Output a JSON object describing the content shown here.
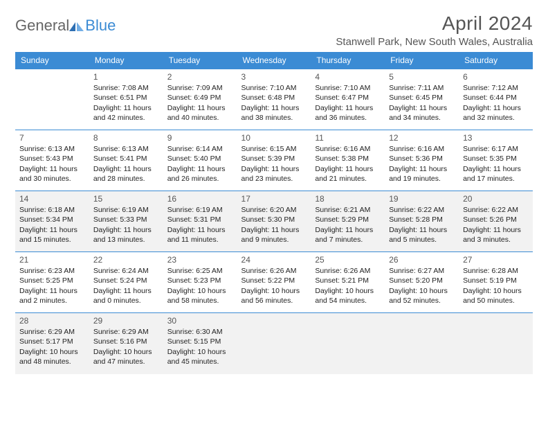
{
  "logo": {
    "general": "General",
    "blue": "Blue"
  },
  "title": {
    "month": "April 2024",
    "location": "Stanwell Park, New South Wales, Australia"
  },
  "weekdays": [
    "Sunday",
    "Monday",
    "Tuesday",
    "Wednesday",
    "Thursday",
    "Friday",
    "Saturday"
  ],
  "colors": {
    "header_bg": "#3b8bd4",
    "header_text": "#ffffff",
    "row_border": "#3b8bd4",
    "shaded_bg": "#f2f2f2",
    "body_text": "#222222",
    "title_text": "#555555"
  },
  "weeks": [
    [
      {
        "day": ""
      },
      {
        "day": "1",
        "sunrise": "Sunrise: 7:08 AM",
        "sunset": "Sunset: 6:51 PM",
        "daylight1": "Daylight: 11 hours",
        "daylight2": "and 42 minutes."
      },
      {
        "day": "2",
        "sunrise": "Sunrise: 7:09 AM",
        "sunset": "Sunset: 6:49 PM",
        "daylight1": "Daylight: 11 hours",
        "daylight2": "and 40 minutes."
      },
      {
        "day": "3",
        "sunrise": "Sunrise: 7:10 AM",
        "sunset": "Sunset: 6:48 PM",
        "daylight1": "Daylight: 11 hours",
        "daylight2": "and 38 minutes."
      },
      {
        "day": "4",
        "sunrise": "Sunrise: 7:10 AM",
        "sunset": "Sunset: 6:47 PM",
        "daylight1": "Daylight: 11 hours",
        "daylight2": "and 36 minutes."
      },
      {
        "day": "5",
        "sunrise": "Sunrise: 7:11 AM",
        "sunset": "Sunset: 6:45 PM",
        "daylight1": "Daylight: 11 hours",
        "daylight2": "and 34 minutes."
      },
      {
        "day": "6",
        "sunrise": "Sunrise: 7:12 AM",
        "sunset": "Sunset: 6:44 PM",
        "daylight1": "Daylight: 11 hours",
        "daylight2": "and 32 minutes."
      }
    ],
    [
      {
        "day": "7",
        "sunrise": "Sunrise: 6:13 AM",
        "sunset": "Sunset: 5:43 PM",
        "daylight1": "Daylight: 11 hours",
        "daylight2": "and 30 minutes."
      },
      {
        "day": "8",
        "sunrise": "Sunrise: 6:13 AM",
        "sunset": "Sunset: 5:41 PM",
        "daylight1": "Daylight: 11 hours",
        "daylight2": "and 28 minutes."
      },
      {
        "day": "9",
        "sunrise": "Sunrise: 6:14 AM",
        "sunset": "Sunset: 5:40 PM",
        "daylight1": "Daylight: 11 hours",
        "daylight2": "and 26 minutes."
      },
      {
        "day": "10",
        "sunrise": "Sunrise: 6:15 AM",
        "sunset": "Sunset: 5:39 PM",
        "daylight1": "Daylight: 11 hours",
        "daylight2": "and 23 minutes."
      },
      {
        "day": "11",
        "sunrise": "Sunrise: 6:16 AM",
        "sunset": "Sunset: 5:38 PM",
        "daylight1": "Daylight: 11 hours",
        "daylight2": "and 21 minutes."
      },
      {
        "day": "12",
        "sunrise": "Sunrise: 6:16 AM",
        "sunset": "Sunset: 5:36 PM",
        "daylight1": "Daylight: 11 hours",
        "daylight2": "and 19 minutes."
      },
      {
        "day": "13",
        "sunrise": "Sunrise: 6:17 AM",
        "sunset": "Sunset: 5:35 PM",
        "daylight1": "Daylight: 11 hours",
        "daylight2": "and 17 minutes."
      }
    ],
    [
      {
        "day": "14",
        "sunrise": "Sunrise: 6:18 AM",
        "sunset": "Sunset: 5:34 PM",
        "daylight1": "Daylight: 11 hours",
        "daylight2": "and 15 minutes."
      },
      {
        "day": "15",
        "sunrise": "Sunrise: 6:19 AM",
        "sunset": "Sunset: 5:33 PM",
        "daylight1": "Daylight: 11 hours",
        "daylight2": "and 13 minutes."
      },
      {
        "day": "16",
        "sunrise": "Sunrise: 6:19 AM",
        "sunset": "Sunset: 5:31 PM",
        "daylight1": "Daylight: 11 hours",
        "daylight2": "and 11 minutes."
      },
      {
        "day": "17",
        "sunrise": "Sunrise: 6:20 AM",
        "sunset": "Sunset: 5:30 PM",
        "daylight1": "Daylight: 11 hours",
        "daylight2": "and 9 minutes."
      },
      {
        "day": "18",
        "sunrise": "Sunrise: 6:21 AM",
        "sunset": "Sunset: 5:29 PM",
        "daylight1": "Daylight: 11 hours",
        "daylight2": "and 7 minutes."
      },
      {
        "day": "19",
        "sunrise": "Sunrise: 6:22 AM",
        "sunset": "Sunset: 5:28 PM",
        "daylight1": "Daylight: 11 hours",
        "daylight2": "and 5 minutes."
      },
      {
        "day": "20",
        "sunrise": "Sunrise: 6:22 AM",
        "sunset": "Sunset: 5:26 PM",
        "daylight1": "Daylight: 11 hours",
        "daylight2": "and 3 minutes."
      }
    ],
    [
      {
        "day": "21",
        "sunrise": "Sunrise: 6:23 AM",
        "sunset": "Sunset: 5:25 PM",
        "daylight1": "Daylight: 11 hours",
        "daylight2": "and 2 minutes."
      },
      {
        "day": "22",
        "sunrise": "Sunrise: 6:24 AM",
        "sunset": "Sunset: 5:24 PM",
        "daylight1": "Daylight: 11 hours",
        "daylight2": "and 0 minutes."
      },
      {
        "day": "23",
        "sunrise": "Sunrise: 6:25 AM",
        "sunset": "Sunset: 5:23 PM",
        "daylight1": "Daylight: 10 hours",
        "daylight2": "and 58 minutes."
      },
      {
        "day": "24",
        "sunrise": "Sunrise: 6:26 AM",
        "sunset": "Sunset: 5:22 PM",
        "daylight1": "Daylight: 10 hours",
        "daylight2": "and 56 minutes."
      },
      {
        "day": "25",
        "sunrise": "Sunrise: 6:26 AM",
        "sunset": "Sunset: 5:21 PM",
        "daylight1": "Daylight: 10 hours",
        "daylight2": "and 54 minutes."
      },
      {
        "day": "26",
        "sunrise": "Sunrise: 6:27 AM",
        "sunset": "Sunset: 5:20 PM",
        "daylight1": "Daylight: 10 hours",
        "daylight2": "and 52 minutes."
      },
      {
        "day": "27",
        "sunrise": "Sunrise: 6:28 AM",
        "sunset": "Sunset: 5:19 PM",
        "daylight1": "Daylight: 10 hours",
        "daylight2": "and 50 minutes."
      }
    ],
    [
      {
        "day": "28",
        "sunrise": "Sunrise: 6:29 AM",
        "sunset": "Sunset: 5:17 PM",
        "daylight1": "Daylight: 10 hours",
        "daylight2": "and 48 minutes."
      },
      {
        "day": "29",
        "sunrise": "Sunrise: 6:29 AM",
        "sunset": "Sunset: 5:16 PM",
        "daylight1": "Daylight: 10 hours",
        "daylight2": "and 47 minutes."
      },
      {
        "day": "30",
        "sunrise": "Sunrise: 6:30 AM",
        "sunset": "Sunset: 5:15 PM",
        "daylight1": "Daylight: 10 hours",
        "daylight2": "and 45 minutes."
      },
      {
        "day": ""
      },
      {
        "day": ""
      },
      {
        "day": ""
      },
      {
        "day": ""
      }
    ]
  ],
  "shaded_rows": [
    2,
    4
  ]
}
